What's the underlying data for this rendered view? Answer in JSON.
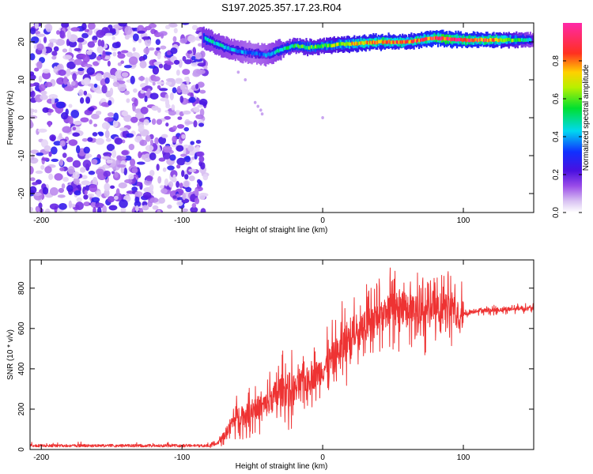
{
  "title": "S197.2025.357.17.23.R04",
  "chart_data": [
    {
      "type": "heatmap",
      "title": "S197.2025.357.17.23.R04",
      "xlabel": "Height of straight line (km)",
      "ylabel": "Frequency (Hz)",
      "xlim": [
        -208,
        150
      ],
      "ylim": [
        -25,
        25
      ],
      "xticks": [
        -200,
        -100,
        0,
        100
      ],
      "yticks": [
        -20,
        -10,
        0,
        10,
        20
      ],
      "grid": false,
      "colorbar": {
        "label": "Normalized spectral amplitude",
        "range": [
          0,
          1
        ],
        "ticks": [
          0.0,
          0.2,
          0.4,
          0.6,
          0.8
        ],
        "colormap": "rainbow (white-violet-blue-cyan-green-yellow-red-magenta)"
      },
      "features": [
        {
          "name": "random noise speckle",
          "x_range": [
            -208,
            -83
          ],
          "y_range": [
            -25,
            25
          ],
          "amplitude": "0.05-0.3"
        },
        {
          "name": "tone ridge",
          "x": [
            -85,
            -70,
            -60,
            -50,
            -40,
            -30,
            -20,
            -10,
            0,
            20,
            40,
            60,
            80,
            100,
            120,
            150
          ],
          "y": [
            21,
            18.5,
            17.5,
            17,
            16.5,
            18,
            19,
            18.5,
            19,
            19.5,
            20,
            20,
            21,
            20.5,
            20.5,
            20.5
          ],
          "amplitude": [
            0.5,
            0.45,
            0.4,
            0.35,
            0.4,
            0.5,
            0.55,
            0.6,
            0.6,
            0.75,
            0.85,
            0.8,
            0.95,
            0.9,
            0.85,
            0.4
          ]
        }
      ]
    },
    {
      "type": "line",
      "title": "",
      "xlabel": "Height of straight line (km)",
      "ylabel": "SNR (10 * v/v)",
      "xlim": [
        -208,
        150
      ],
      "ylim": [
        0,
        940
      ],
      "xticks": [
        -200,
        -100,
        0,
        100
      ],
      "yticks": [
        0,
        200,
        400,
        600,
        800
      ],
      "grid": false,
      "series": [
        {
          "name": "SNR",
          "color": "#ee3333",
          "x": [
            -208,
            -180,
            -150,
            -120,
            -100,
            -90,
            -80,
            -75,
            -70,
            -65,
            -60,
            -55,
            -50,
            -45,
            -40,
            -35,
            -30,
            -25,
            -20,
            -15,
            -10,
            -5,
            0,
            5,
            10,
            15,
            20,
            25,
            30,
            35,
            40,
            45,
            50,
            55,
            60,
            65,
            70,
            75,
            80,
            85,
            90,
            95,
            100,
            110,
            120,
            130,
            140,
            150
          ],
          "y": [
            15,
            15,
            15,
            15,
            15,
            15,
            18,
            30,
            70,
            130,
            170,
            170,
            200,
            210,
            220,
            260,
            290,
            300,
            300,
            330,
            350,
            370,
            400,
            430,
            470,
            520,
            570,
            600,
            620,
            640,
            660,
            680,
            700,
            680,
            690,
            700,
            700,
            690,
            700,
            700,
            690,
            680,
            670,
            690,
            690,
            695,
            700,
            700
          ]
        }
      ],
      "annotations": [
        "Large noisy spikes from x=-65 to x=100 km (peaks up to ~930)"
      ]
    }
  ]
}
